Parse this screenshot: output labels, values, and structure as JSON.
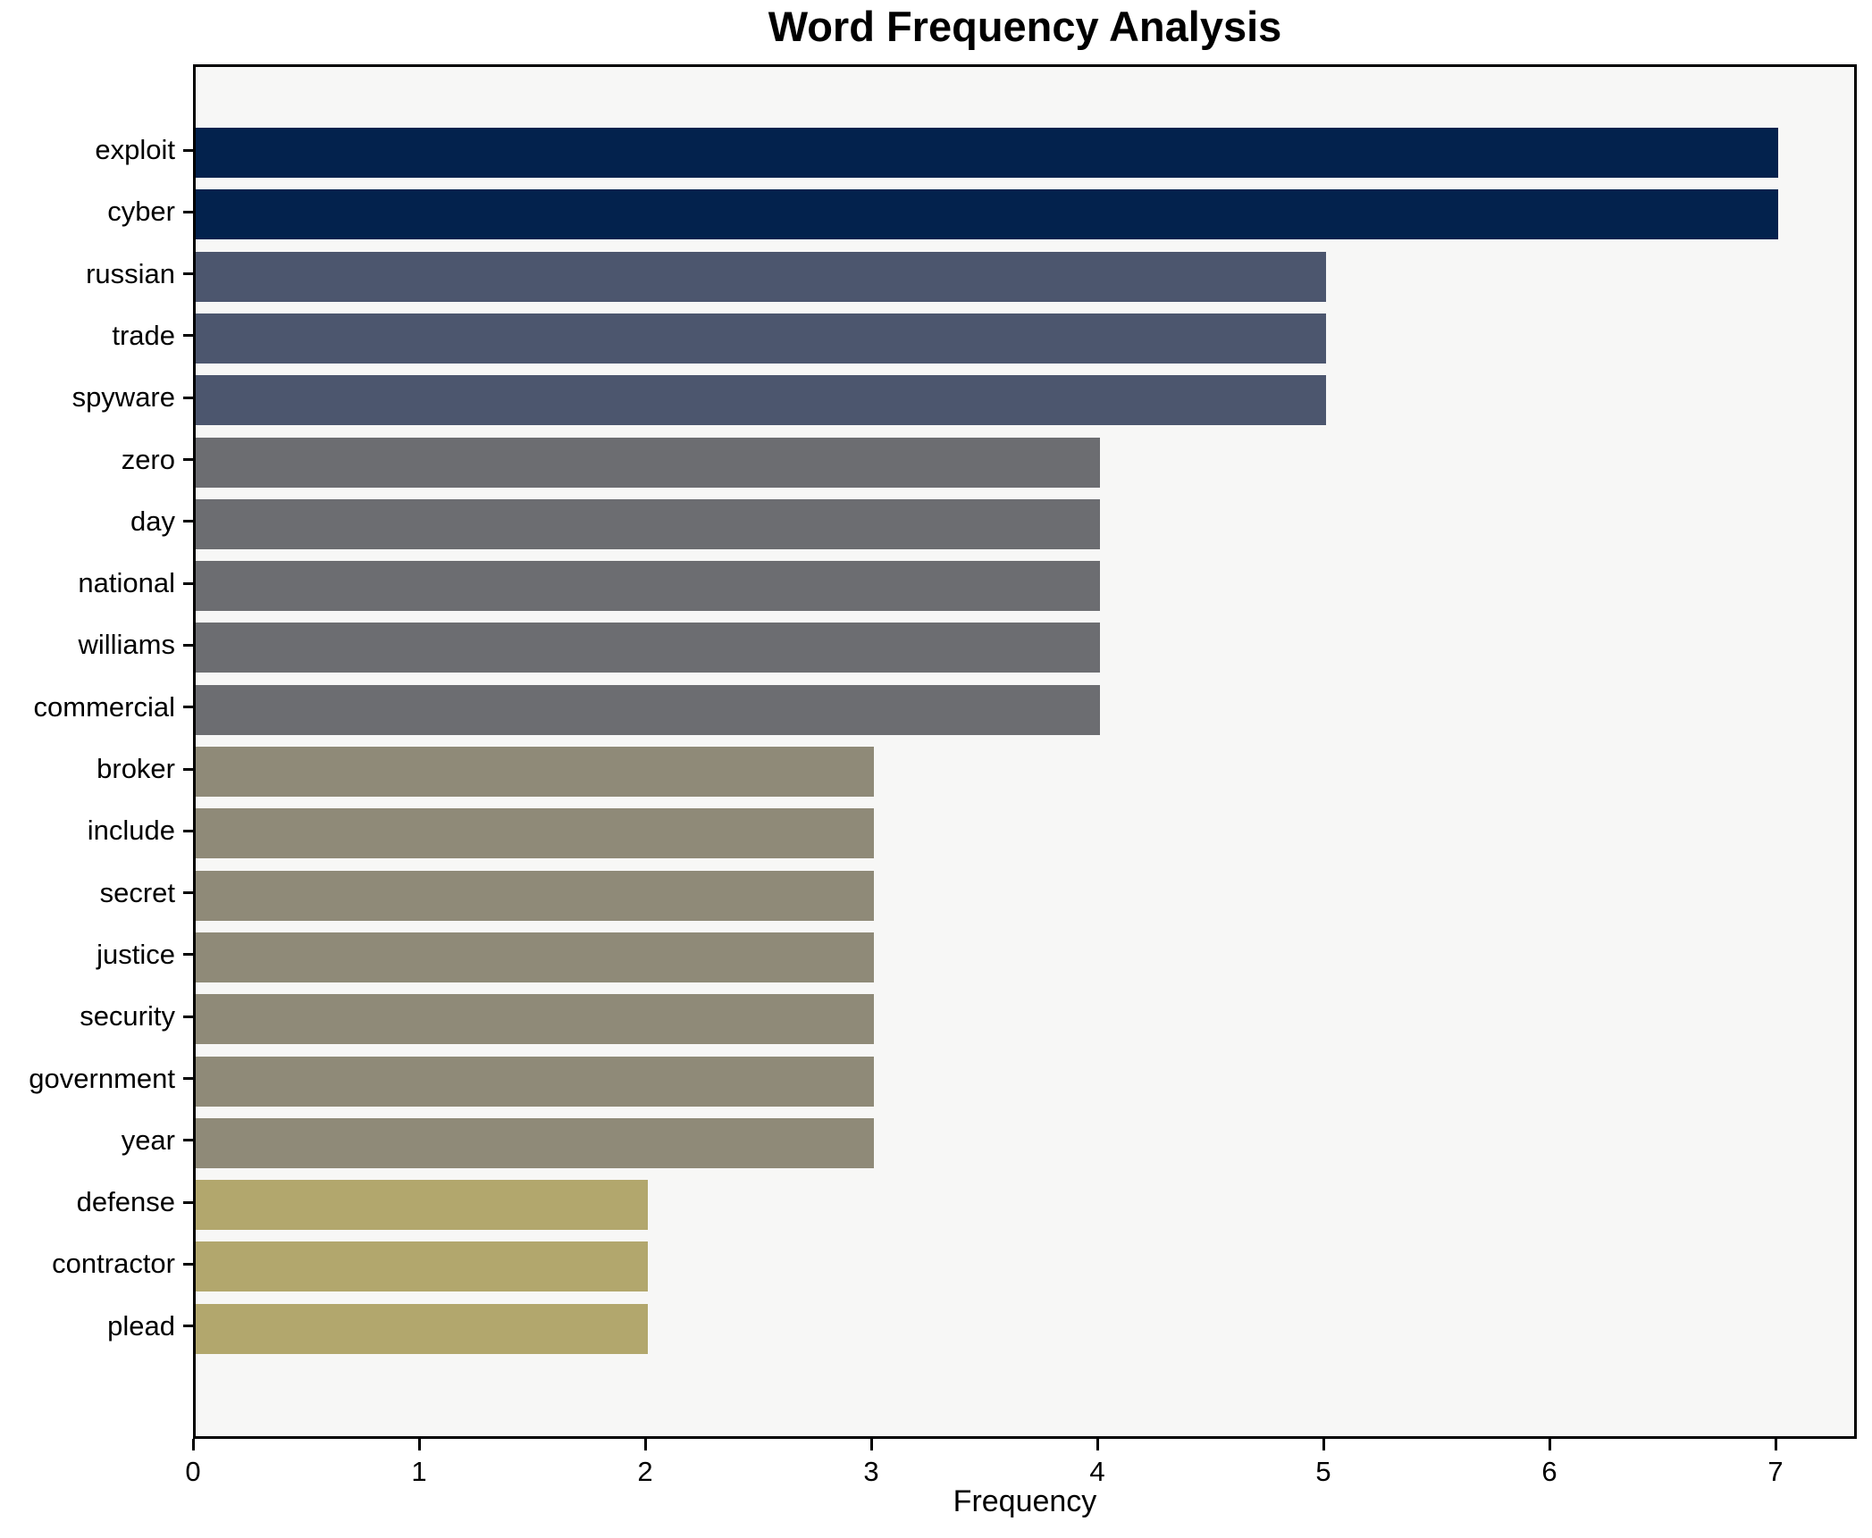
{
  "chart_data": {
    "type": "bar",
    "orientation": "horizontal",
    "title": "Word Frequency Analysis",
    "xlabel": "Frequency",
    "ylabel": "",
    "xlim": [
      0,
      7.36
    ],
    "x_ticks": [
      "0",
      "1",
      "2",
      "3",
      "4",
      "5",
      "6",
      "7"
    ],
    "grid": false,
    "legend_position": "none",
    "plot_background": "#f7f7f6",
    "figure_background": "#ffffff",
    "categories": [
      "exploit",
      "cyber",
      "russian",
      "trade",
      "spyware",
      "zero",
      "day",
      "national",
      "williams",
      "commercial",
      "broker",
      "include",
      "secret",
      "justice",
      "security",
      "government",
      "year",
      "defense",
      "contractor",
      "plead"
    ],
    "values": [
      7,
      7,
      5,
      5,
      5,
      4,
      4,
      4,
      4,
      4,
      3,
      3,
      3,
      3,
      3,
      3,
      3,
      2,
      2,
      2
    ],
    "bar_colors": [
      "#03224d",
      "#03224d",
      "#4c566e",
      "#4c566e",
      "#4c566e",
      "#6c6d71",
      "#6c6d71",
      "#6c6d71",
      "#6c6d71",
      "#6c6d71",
      "#8f8a78",
      "#8f8a78",
      "#8f8a78",
      "#8f8a78",
      "#8f8a78",
      "#8f8a78",
      "#8f8a78",
      "#b2a76d",
      "#b2a76d",
      "#b2a76d"
    ]
  }
}
